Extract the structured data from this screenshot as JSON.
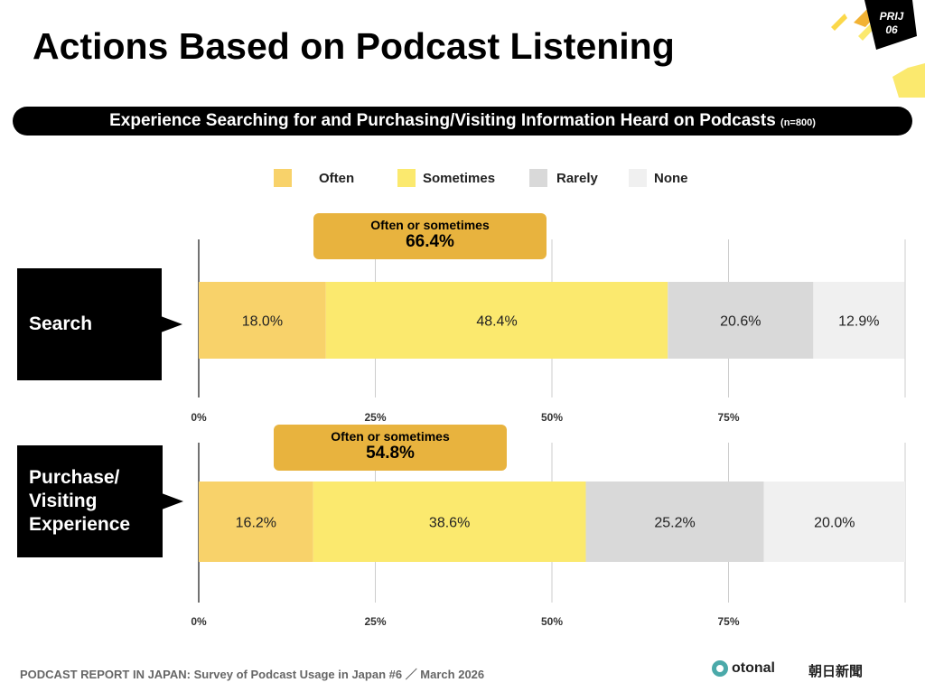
{
  "title": "Actions Based on Podcast Listening",
  "badge": "PRIJ 06",
  "banner": {
    "text": "Experience Searching for and Purchasing/Visiting Information Heard on Podcasts",
    "n": "(n=800)"
  },
  "footer": "PODCAST REPORT IN JAPAN: Survey of Podcast Usage in Japan #6 ／ March 2026",
  "logos": [
    "otonal",
    "朝日新聞"
  ],
  "chart_data": {
    "type": "bar",
    "stacked": true,
    "orientation": "horizontal",
    "categories": [
      "Search",
      "Purchase/ Visiting Experience"
    ],
    "series": [
      {
        "name": "Often",
        "color": "#f8d26a",
        "values": [
          18.0,
          16.2
        ],
        "labels": [
          "18.0%",
          "16.2%"
        ]
      },
      {
        "name": "Sometimes",
        "color": "#fbe96e",
        "values": [
          48.4,
          38.6
        ],
        "labels": [
          "48.4%",
          "38.6%"
        ]
      },
      {
        "name": "Rarely",
        "color": "#d9d9d9",
        "values": [
          20.6,
          25.2
        ],
        "labels": [
          "20.6%",
          "25.2%"
        ]
      },
      {
        "name": "None",
        "color": "#f0f0f0",
        "values": [
          12.9,
          20.0
        ],
        "labels": [
          "12.9%",
          "20.0%"
        ]
      }
    ],
    "xlim": [
      0,
      100
    ],
    "xticks": [
      "0%",
      "25%",
      "50%",
      "75%"
    ],
    "legend": "top",
    "callouts": [
      {
        "label": "Often or sometimes",
        "value": "66.4%"
      },
      {
        "label": "Often or sometimes",
        "value": "54.8%"
      }
    ]
  }
}
